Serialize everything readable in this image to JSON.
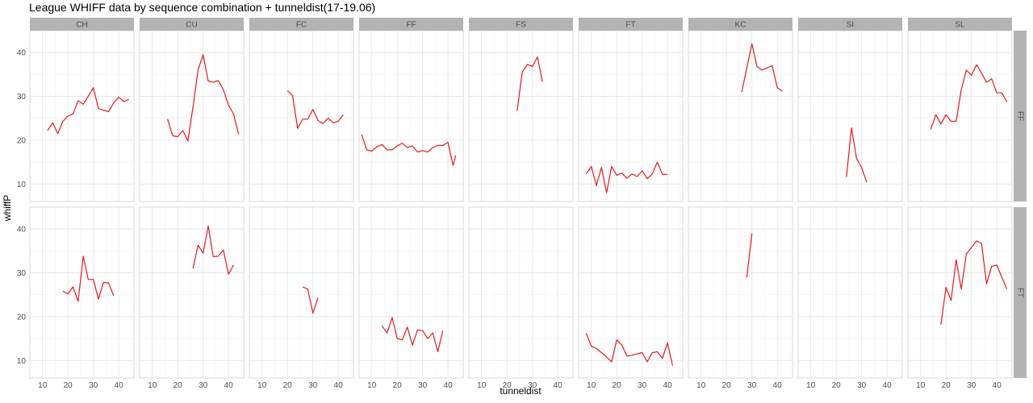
{
  "chart_data": {
    "type": "line",
    "title": "League WHIFF data by sequence combination + tunneldist(17-19.06)",
    "xlabel": "tunneldist",
    "ylabel": "whiffP",
    "xlim": [
      5,
      46
    ],
    "ylim": [
      6,
      45
    ],
    "xticks": [
      10,
      20,
      30,
      40
    ],
    "yticks": [
      10,
      20,
      30,
      40
    ],
    "grid": true,
    "line_color": "#e31a1c",
    "columns": [
      "CH",
      "CU",
      "FC",
      "FF",
      "FS",
      "FT",
      "KC",
      "SI",
      "SL"
    ],
    "rows": [
      "FF",
      "FT"
    ],
    "panels": [
      {
        "col": "CH",
        "row": "FF",
        "x": [
          12,
          14,
          16,
          18,
          20,
          22,
          24,
          26,
          28,
          30,
          32,
          36,
          38,
          40,
          42,
          44
        ],
        "y": [
          22.2,
          24.0,
          21.5,
          24.3,
          25.5,
          26.0,
          29.0,
          28.2,
          30.0,
          32.0,
          27.2,
          26.5,
          28.5,
          29.8,
          28.8,
          29.3
        ]
      },
      {
        "col": "CU",
        "row": "FF",
        "x": [
          16,
          18,
          20,
          22,
          24,
          26,
          28,
          30,
          32,
          34,
          36,
          38,
          40,
          42,
          44
        ],
        "y": [
          24.8,
          21.0,
          20.8,
          22.2,
          19.8,
          27.5,
          36.0,
          39.5,
          33.5,
          33.2,
          33.6,
          31.5,
          28.0,
          26.0,
          21.3
        ]
      },
      {
        "col": "FC",
        "row": "FF",
        "x": [
          20,
          22,
          24,
          26,
          28,
          30,
          32,
          34,
          36,
          38,
          40,
          42
        ],
        "y": [
          31.3,
          30.2,
          22.7,
          24.8,
          24.8,
          27.0,
          24.5,
          23.8,
          25.0,
          24.0,
          24.3,
          25.8
        ]
      },
      {
        "col": "FF",
        "row": "FF",
        "x": [
          6,
          8,
          10,
          12,
          14,
          16,
          18,
          20,
          22,
          24,
          26,
          28,
          30,
          32,
          34,
          36,
          38,
          40,
          42
        ],
        "y": [
          21.3,
          17.8,
          17.5,
          18.5,
          19.0,
          17.8,
          17.8,
          18.7,
          19.3,
          18.3,
          18.7,
          17.3,
          17.6,
          17.3,
          18.3,
          18.8,
          18.8,
          19.5,
          14.2
        ]
      },
      {
        "col": "FF",
        "row": "FF",
        "x": [
          42,
          43
        ],
        "y": [
          14.2,
          16.5
        ]
      },
      {
        "col": "FS",
        "row": "FF",
        "x": [
          24,
          26,
          28,
          30,
          32,
          34
        ],
        "y": [
          26.7,
          35.5,
          37.3,
          36.8,
          39.0,
          33.3
        ]
      },
      {
        "col": "FT",
        "row": "FF",
        "x": [
          8,
          10,
          12,
          14,
          16,
          18,
          20,
          22,
          24,
          26,
          28,
          30,
          32,
          34,
          36,
          38,
          40
        ],
        "y": [
          12.3,
          14.0,
          9.6,
          13.8,
          8.0,
          14.0,
          12.0,
          12.5,
          11.3,
          12.3,
          11.7,
          13.0,
          11.2,
          12.3,
          15.0,
          12.2,
          12.2
        ]
      },
      {
        "col": "KC",
        "row": "FF",
        "x": [
          26,
          28,
          30,
          32,
          34,
          36,
          38,
          40,
          42
        ],
        "y": [
          31.0,
          36.5,
          42.0,
          36.8,
          36.0,
          36.5,
          37.0,
          32.0,
          31.2
        ]
      },
      {
        "col": "SI",
        "row": "FF",
        "x": [
          24,
          26,
          28,
          30,
          32
        ],
        "y": [
          11.6,
          22.8,
          15.8,
          13.7,
          10.4
        ]
      },
      {
        "col": "SL",
        "row": "FF",
        "x": [
          14,
          16,
          18,
          20,
          22,
          24,
          26,
          28,
          30,
          32,
          34,
          36,
          38,
          40,
          42,
          44
        ],
        "y": [
          22.5,
          25.8,
          23.7,
          25.8,
          24.3,
          24.3,
          31.5,
          36.0,
          34.8,
          37.2,
          35.3,
          33.2,
          34.0,
          30.8,
          30.8,
          28.7
        ]
      },
      {
        "col": "CH",
        "row": "FT",
        "x": [
          18,
          20,
          22,
          24,
          26,
          28,
          30,
          32,
          34,
          36,
          38
        ],
        "y": [
          25.8,
          25.2,
          26.8,
          23.5,
          33.8,
          28.5,
          28.5,
          24.0,
          27.8,
          27.7,
          24.8
        ]
      },
      {
        "col": "CU",
        "row": "FT",
        "x": [
          26,
          28,
          30,
          32,
          34,
          36,
          38,
          40,
          42
        ],
        "y": [
          31.0,
          36.3,
          34.5,
          40.7,
          33.7,
          33.8,
          35.2,
          29.7,
          31.8
        ]
      },
      {
        "col": "FC",
        "row": "FT",
        "x": [
          26,
          28,
          30,
          32
        ],
        "y": [
          26.8,
          26.3,
          20.8,
          24.3
        ]
      },
      {
        "col": "FF",
        "row": "FT",
        "x": [
          14,
          16,
          18,
          20,
          22,
          24,
          26,
          28,
          30,
          32,
          34,
          36,
          38
        ],
        "y": [
          17.9,
          16.3,
          19.8,
          15.0,
          14.7,
          17.6,
          13.5,
          17.0,
          16.8,
          15.0,
          16.3,
          12.0,
          16.8
        ]
      },
      {
        "col": "FT",
        "row": "FT",
        "x": [
          8,
          10,
          12,
          14,
          16,
          18,
          20,
          22,
          24,
          26,
          28,
          30,
          32,
          34,
          36,
          38,
          40,
          42
        ],
        "y": [
          16.2,
          13.3,
          12.7,
          11.8,
          10.8,
          9.7,
          14.7,
          13.5,
          11.0,
          11.2,
          11.5,
          11.8,
          9.7,
          11.8,
          12.0,
          10.5,
          14.0,
          8.8
        ]
      },
      {
        "col": "KC",
        "row": "FT",
        "x": [
          28,
          30
        ],
        "y": [
          29.0,
          39.0
        ]
      },
      {
        "col": "SL",
        "row": "FT",
        "x": [
          18,
          20,
          22,
          24,
          26,
          28,
          30,
          32,
          34,
          36,
          38,
          40,
          42,
          44
        ],
        "y": [
          18.2,
          26.7,
          23.7,
          33.0,
          26.3,
          34.3,
          35.8,
          37.3,
          36.7,
          27.5,
          31.5,
          31.8,
          29.0,
          26.3
        ]
      }
    ]
  }
}
